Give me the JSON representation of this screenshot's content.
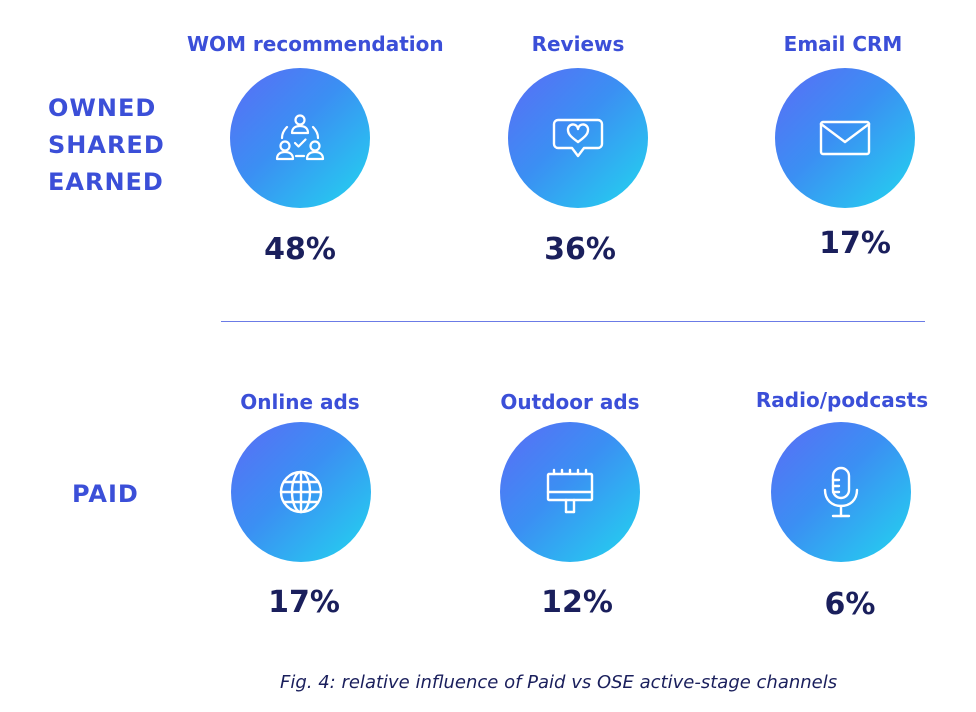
{
  "groups": {
    "ose": [
      "OWNED",
      "SHARED",
      "EARNED"
    ],
    "paid": "PAID"
  },
  "top": [
    {
      "title": "WOM recommendation",
      "value": "48%",
      "icon": "people-network-icon"
    },
    {
      "title": "Reviews",
      "value": "36%",
      "icon": "heart-speech-bubble-icon"
    },
    {
      "title": "Email CRM",
      "value": "17%",
      "icon": "envelope-icon"
    }
  ],
  "bottom": [
    {
      "title": "Online ads",
      "value": "17%",
      "icon": "globe-icon"
    },
    {
      "title": "Outdoor ads",
      "value": "12%",
      "icon": "billboard-icon"
    },
    {
      "title": "Radio/podcasts",
      "value": "6%",
      "icon": "microphone-icon"
    }
  ],
  "caption": "Fig. 4: relative influence of Paid vs OSE active-stage channels",
  "colors": {
    "accent": "#3b4fd8",
    "value_text": "#1a1f5c",
    "gradient_start": "#5b6cf6",
    "gradient_end": "#22d6ef"
  }
}
